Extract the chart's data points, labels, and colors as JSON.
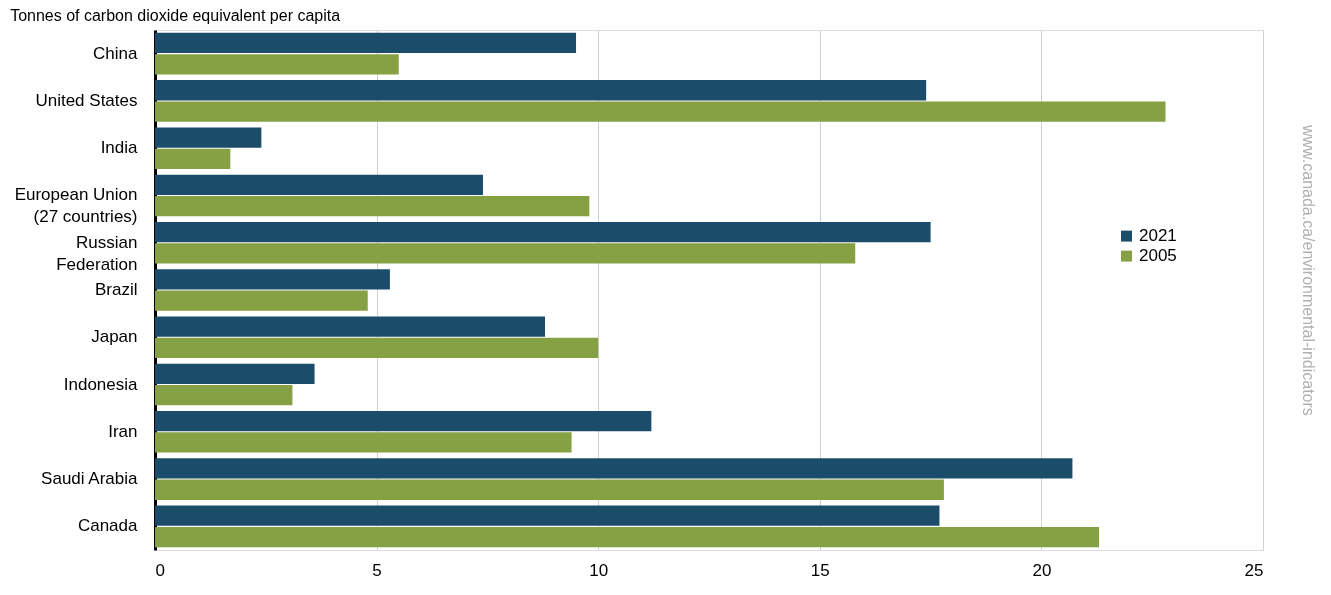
{
  "chart_data": {
    "type": "bar",
    "orientation": "horizontal",
    "title": "Tonnes of carbon dioxide equivalent per capita",
    "categories": [
      "China",
      "United States",
      "India",
      "European Union\n(27 countries)",
      "Russian\nFederation",
      "Brazil",
      "Japan",
      "Indonesia",
      "Iran",
      "Saudi Arabia",
      "Canada"
    ],
    "series": [
      {
        "name": "2021",
        "color": "#1b4d6b",
        "values": [
          9.5,
          17.4,
          2.4,
          7.4,
          17.5,
          5.3,
          8.8,
          3.6,
          11.2,
          20.7,
          17.7
        ]
      },
      {
        "name": "2005",
        "color": "#86a143",
        "values": [
          5.5,
          22.8,
          1.7,
          9.8,
          15.8,
          4.8,
          10.0,
          3.1,
          9.4,
          17.8,
          21.3
        ]
      }
    ],
    "xlim": [
      0,
      25
    ],
    "xticks": [
      0,
      5,
      10,
      15,
      20,
      25
    ],
    "grid": "x",
    "legend": "right",
    "annotations": [
      "www.canada.ca/environmental-indicators"
    ]
  }
}
